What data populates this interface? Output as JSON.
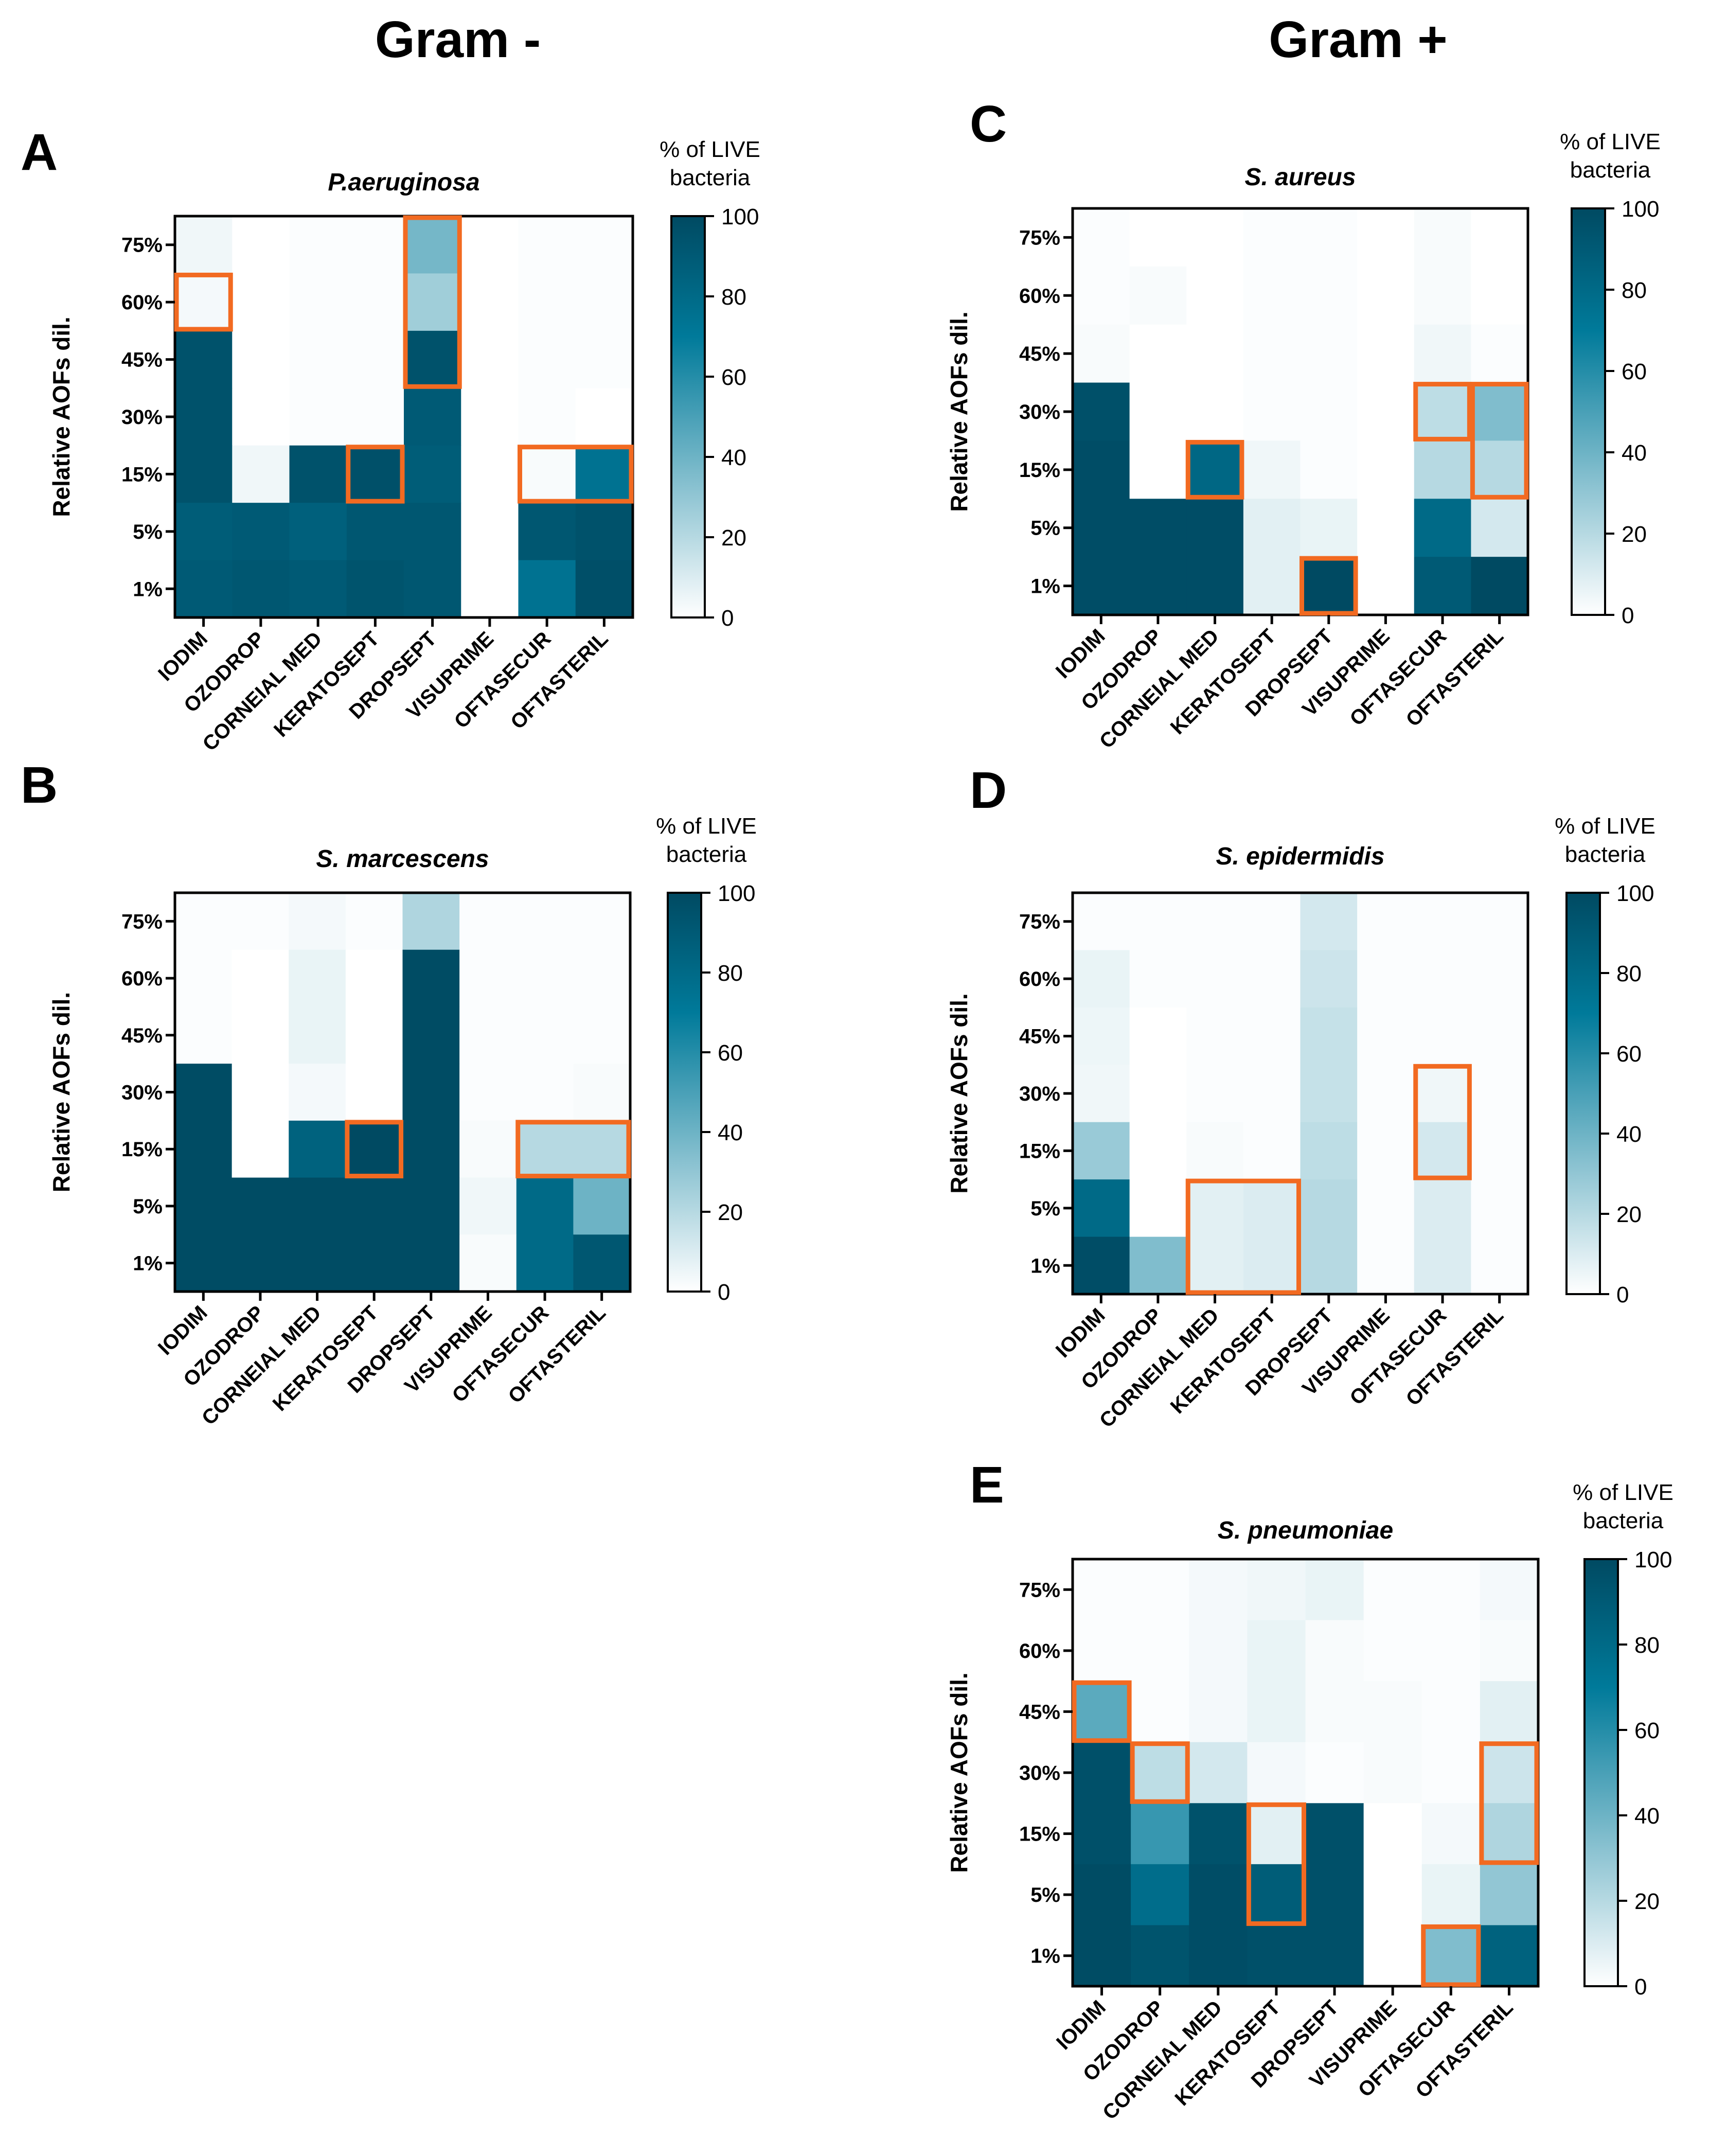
{
  "figure": {
    "column_titles": [
      "Gram -",
      "Gram +"
    ],
    "panel_letters": [
      "A",
      "B",
      "C",
      "D",
      "E"
    ],
    "colorbar_title": [
      "% of LIVE",
      "bacteria"
    ],
    "colorbar_ticks": [
      "0",
      "20",
      "40",
      "60",
      "80",
      "100"
    ],
    "ylabel": "Relative AOFs dil.",
    "colors": {
      "low": "#ffffff",
      "mid": "#007a9a",
      "high": "#004a62",
      "highlight": "#f26a21",
      "text": "#000000"
    }
  },
  "chart_data": [
    {
      "panel": "A",
      "title": "P.aeruginosa",
      "type": "heatmap",
      "x": [
        "IODIM",
        "OZODROP",
        "CORNEIAL MED",
        "KERATOSEPT",
        "DROPSEPT",
        "VISUPRIME",
        "OFTASECUR",
        "OFTASTERIL"
      ],
      "y": [
        "75%",
        "60%",
        "45%",
        "30%",
        "15%",
        "5%",
        "1%"
      ],
      "ylabel": "Relative AOFs dil.",
      "colorbar": {
        "title": "% of LIVE bacteria",
        "range": [
          0,
          100
        ],
        "ticks": [
          0,
          20,
          40,
          60,
          80,
          100
        ]
      },
      "values": [
        [
          4,
          0,
          1,
          1,
          38,
          0,
          1,
          1
        ],
        [
          3,
          0,
          1,
          1,
          26,
          0,
          1,
          1
        ],
        [
          95,
          0,
          1,
          1,
          95,
          0,
          1,
          1
        ],
        [
          95,
          0,
          1,
          1,
          90,
          0,
          1,
          0
        ],
        [
          95,
          4,
          95,
          96,
          88,
          0,
          2,
          75
        ],
        [
          88,
          90,
          86,
          92,
          92,
          0,
          92,
          95
        ],
        [
          90,
          92,
          90,
          94,
          92,
          0,
          75,
          97
        ]
      ],
      "highlights": [
        [
          0,
          1,
          1,
          1
        ],
        [
          4,
          0,
          1,
          3
        ],
        [
          3,
          4,
          1,
          1
        ],
        [
          6,
          4,
          2,
          1
        ]
      ]
    },
    {
      "panel": "B",
      "title": "S. marcescens",
      "type": "heatmap",
      "x": [
        "IODIM",
        "OZODROP",
        "CORNEIAL MED",
        "KERATOSEPT",
        "DROPSEPT",
        "VISUPRIME",
        "OFTASECUR",
        "OFTASTERIL"
      ],
      "y": [
        "75%",
        "60%",
        "45%",
        "30%",
        "15%",
        "5%",
        "1%"
      ],
      "ylabel": "Relative AOFs dil.",
      "colorbar": {
        "title": "% of LIVE bacteria",
        "range": [
          0,
          100
        ],
        "ticks": [
          0,
          20,
          40,
          60,
          80,
          100
        ]
      },
      "values": [
        [
          1,
          1,
          3,
          1,
          22,
          1,
          1,
          1
        ],
        [
          1,
          0,
          6,
          0,
          99,
          1,
          1,
          1
        ],
        [
          1,
          0,
          6,
          0,
          99,
          1,
          1,
          1
        ],
        [
          99,
          0,
          3,
          0,
          99,
          1,
          1,
          2
        ],
        [
          99,
          0,
          85,
          100,
          99,
          2,
          20,
          20
        ],
        [
          99,
          99,
          99,
          99,
          99,
          4,
          80,
          40
        ],
        [
          99,
          99,
          99,
          99,
          99,
          2,
          80,
          92
        ]
      ],
      "highlights": [
        [
          3,
          4,
          1,
          1
        ],
        [
          6,
          4,
          2,
          1
        ]
      ]
    },
    {
      "panel": "C",
      "title": "S. aureus",
      "type": "heatmap",
      "x": [
        "IODIM",
        "OZODROP",
        "CORNEIAL MED",
        "KERATOSEPT",
        "DROPSEPT",
        "VISUPRIME",
        "OFTASECUR",
        "OFTASTERIL"
      ],
      "y": [
        "75%",
        "60%",
        "45%",
        "30%",
        "15%",
        "5%",
        "1%"
      ],
      "ylabel": "Relative AOFs dil.",
      "colorbar": {
        "title": "% of LIVE bacteria",
        "range": [
          0,
          100
        ],
        "ticks": [
          0,
          20,
          40,
          60,
          80,
          100
        ]
      },
      "values": [
        [
          1,
          0,
          0,
          1,
          1,
          0,
          2,
          0
        ],
        [
          1,
          2,
          0,
          1,
          1,
          0,
          2,
          0
        ],
        [
          2,
          0,
          0,
          1,
          1,
          0,
          4,
          1
        ],
        [
          96,
          0,
          0,
          1,
          1,
          0,
          18,
          35
        ],
        [
          98,
          0,
          82,
          4,
          1,
          0,
          20,
          20
        ],
        [
          98,
          98,
          98,
          8,
          6,
          0,
          80,
          12
        ],
        [
          98,
          98,
          98,
          8,
          100,
          0,
          90,
          100
        ]
      ],
      "highlights": [
        [
          6,
          3,
          1,
          1
        ],
        [
          7,
          3,
          1,
          2
        ],
        [
          2,
          4,
          1,
          1
        ],
        [
          4,
          6,
          1,
          1
        ]
      ]
    },
    {
      "panel": "D",
      "title": "S. epidermidis",
      "type": "heatmap",
      "x": [
        "IODIM",
        "OZODROP",
        "CORNEIAL MED",
        "KERATOSEPT",
        "DROPSEPT",
        "VISUPRIME",
        "OFTASECUR",
        "OFTASTERIL"
      ],
      "y": [
        "75%",
        "60%",
        "45%",
        "30%",
        "15%",
        "5%",
        "1%"
      ],
      "ylabel": "Relative AOFs dil.",
      "colorbar": {
        "title": "% of LIVE bacteria",
        "range": [
          0,
          100
        ],
        "ticks": [
          0,
          20,
          40,
          60,
          80,
          100
        ]
      },
      "values": [
        [
          1,
          1,
          1,
          1,
          12,
          1,
          1,
          1
        ],
        [
          6,
          1,
          1,
          1,
          14,
          1,
          1,
          1
        ],
        [
          5,
          0,
          1,
          1,
          16,
          1,
          1,
          1
        ],
        [
          4,
          0,
          1,
          1,
          16,
          1,
          4,
          1
        ],
        [
          28,
          0,
          2,
          1,
          18,
          1,
          12,
          1
        ],
        [
          80,
          0,
          8,
          10,
          20,
          1,
          10,
          1
        ],
        [
          98,
          35,
          8,
          10,
          20,
          1,
          10,
          1
        ]
      ],
      "highlights": [
        [
          6,
          3,
          1,
          2
        ],
        [
          2,
          5,
          2,
          2
        ]
      ]
    },
    {
      "panel": "E",
      "title": "S. pneumoniae",
      "type": "heatmap",
      "x": [
        "IODIM",
        "OZODROP",
        "CORNEIAL MED",
        "KERATOSEPT",
        "DROPSEPT",
        "VISUPRIME",
        "OFTASECUR",
        "OFTASTERIL"
      ],
      "y": [
        "75%",
        "60%",
        "45%",
        "30%",
        "15%",
        "5%",
        "1%"
      ],
      "ylabel": "Relative AOFs dil.",
      "colorbar": {
        "title": "% of LIVE bacteria",
        "range": [
          0,
          100
        ],
        "ticks": [
          0,
          20,
          40,
          60,
          80,
          100
        ]
      },
      "values": [
        [
          1,
          1,
          3,
          4,
          6,
          1,
          1,
          3
        ],
        [
          1,
          1,
          3,
          6,
          2,
          1,
          1,
          2
        ],
        [
          45,
          1,
          3,
          6,
          2,
          2,
          1,
          8
        ],
        [
          96,
          18,
          12,
          3,
          1,
          2,
          1,
          14
        ],
        [
          96,
          55,
          95,
          8,
          96,
          0,
          3,
          22
        ],
        [
          99,
          78,
          98,
          88,
          96,
          0,
          6,
          30
        ],
        [
          99,
          94,
          98,
          96,
          96,
          0,
          35,
          85
        ]
      ],
      "highlights": [
        [
          0,
          2,
          1,
          1
        ],
        [
          1,
          3,
          1,
          1
        ],
        [
          3,
          4,
          1,
          2
        ],
        [
          7,
          3,
          1,
          2
        ],
        [
          6,
          6,
          1,
          1
        ]
      ]
    }
  ]
}
